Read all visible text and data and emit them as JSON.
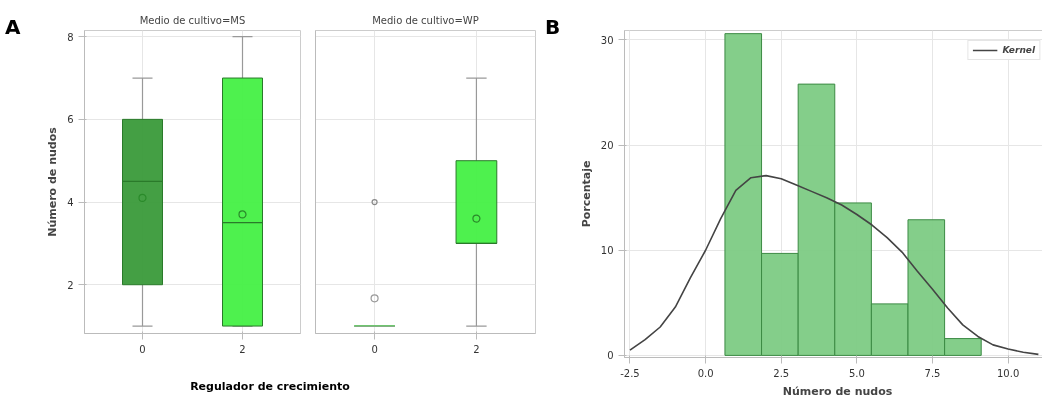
{
  "chart_data": [
    {
      "type": "box",
      "title": "Medio de cultivo=MS",
      "xlabel": "Regulador de crecimiento",
      "ylabel": "Número de nudos",
      "annotations": [
        "A"
      ],
      "categories": [
        "0",
        "2"
      ],
      "colors": [
        "#3a9a3a",
        "#44f044"
      ],
      "boxes": [
        {
          "low": 1,
          "q1": 2,
          "median": 4.5,
          "q3": 6,
          "high": 7,
          "mean": 4.1
        },
        {
          "low": 1,
          "q1": 1,
          "median": 3.5,
          "q3": 7,
          "high": 8,
          "mean": 3.7
        }
      ],
      "ylim": [
        0.82,
        8.15
      ],
      "yticks": [
        2,
        4,
        6,
        8
      ],
      "grid": true
    },
    {
      "type": "box",
      "title": "Medio de cultivo=WP",
      "categories": [
        "0",
        "2"
      ],
      "colors": [
        "#44f044",
        "#44f044"
      ],
      "boxes": [
        {
          "low": 1,
          "q1": 1,
          "median": 1,
          "q3": 1,
          "high": 1,
          "mean": 1.67,
          "outliers": [
            4
          ]
        },
        {
          "low": 1,
          "q1": 3,
          "median": 3,
          "q3": 5,
          "high": 7,
          "mean": 3.6
        }
      ],
      "ylim": [
        0.82,
        8.15
      ],
      "yticks": [
        2,
        4,
        6,
        8
      ],
      "grid": true,
      "tick_labels": "x"
    },
    {
      "type": "histogram",
      "xlabel": "Número de nudos",
      "ylabel": "Porcentaje",
      "annotations": [
        "B"
      ],
      "color": "#7dcb84",
      "bins": [
        0.64,
        1.85,
        3.06,
        4.27,
        5.48,
        6.69,
        7.9,
        9.11
      ],
      "values": [
        30.6,
        9.7,
        25.8,
        14.5,
        4.9,
        12.9,
        1.6
      ],
      "series": [
        {
          "type": "line",
          "name": "Kernel",
          "color": "#444444",
          "x": [
            -2.5,
            -2.0,
            -1.5,
            -1.0,
            -0.5,
            0.0,
            0.5,
            1.0,
            1.5,
            2.0,
            2.5,
            3.0,
            3.5,
            4.0,
            4.5,
            5.0,
            5.5,
            6.0,
            6.5,
            7.0,
            7.5,
            8.0,
            8.5,
            9.0,
            9.5,
            10.0,
            10.5,
            11.0
          ],
          "values": [
            0.5,
            1.5,
            2.7,
            4.6,
            7.4,
            10.0,
            13.0,
            15.7,
            16.9,
            17.1,
            16.8,
            16.2,
            15.6,
            15.0,
            14.3,
            13.4,
            12.4,
            11.2,
            9.8,
            8.0,
            6.3,
            4.5,
            2.9,
            1.8,
            1.0,
            0.6,
            0.3,
            0.1
          ]
        }
      ],
      "xlim": [
        -2.68,
        11.4
      ],
      "ylim": [
        -0.2,
        30.9
      ],
      "xticks": [
        {
          "value": -2.5,
          "label": "-2.5"
        },
        {
          "value": 0,
          "label": "0.0"
        },
        {
          "value": 2.5,
          "label": "2.5"
        },
        {
          "value": 5,
          "label": "5.0"
        },
        {
          "value": 7.5,
          "label": "7.5"
        },
        {
          "value": 10,
          "label": "10.0"
        }
      ],
      "yticks": [
        0,
        10,
        20,
        30
      ],
      "grid": true,
      "legend": "top right"
    }
  ]
}
